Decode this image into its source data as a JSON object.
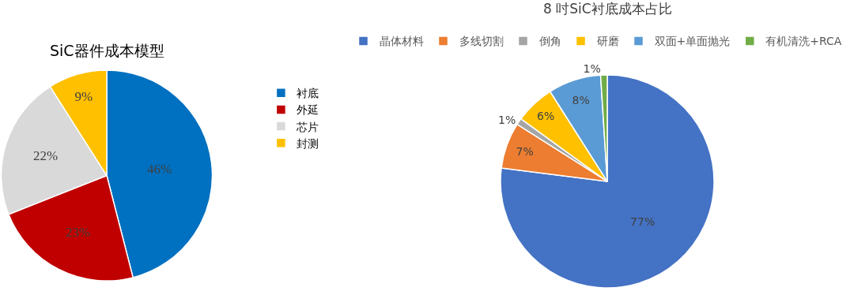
{
  "chart_data": [
    {
      "type": "pie",
      "title": "SiC器件成本模型",
      "categories": [
        "衬底",
        "外延",
        "芯片",
        "封测"
      ],
      "values": [
        46,
        23,
        22,
        9
      ],
      "colors": [
        "#0070c0",
        "#c00000",
        "#d9d9d9",
        "#ffc000"
      ],
      "value_labels": [
        "46%",
        "23%",
        "22%",
        "9%"
      ],
      "legend": "right"
    },
    {
      "type": "pie",
      "title": "8 吋SiC衬底成本占比",
      "categories": [
        "晶体材料",
        "多线切割",
        "倒角",
        "研磨",
        "双面+单面抛光",
        "有机清洗+RCA"
      ],
      "values": [
        77,
        7,
        1,
        6,
        8,
        1
      ],
      "colors": [
        "#4472c4",
        "#ed7d31",
        "#a5a5a5",
        "#ffc000",
        "#5b9bd5",
        "#70ad47"
      ],
      "value_labels": [
        "77%",
        "7%",
        "1%",
        "6%",
        "8%",
        "1%"
      ],
      "legend": "top"
    }
  ]
}
